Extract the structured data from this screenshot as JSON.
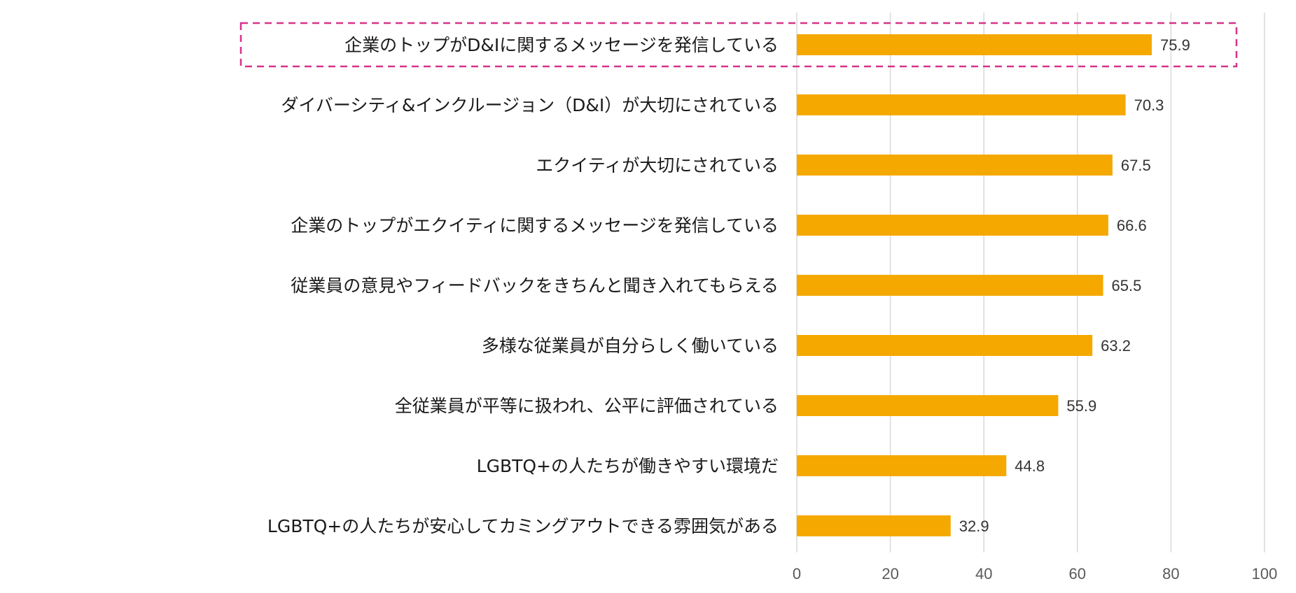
{
  "chart_data": {
    "type": "bar",
    "orientation": "horizontal",
    "title": "",
    "xlabel": "",
    "ylabel": "",
    "xlim": [
      0,
      100
    ],
    "ticks": [
      0,
      20,
      40,
      60,
      80,
      100
    ],
    "grid": true,
    "bar_color": "#F5A800",
    "highlight_color": "#D6338A",
    "highlight_index": 0,
    "categories": [
      "企業のトップがD&Iに関するメッセージを発信している",
      "ダイバーシティ&インクルージョン（D&I）が大切にされている",
      "エクイティが大切にされている",
      "企業のトップがエクイティに関するメッセージを発信している",
      "従業員の意見やフィードバックをきちんと聞き入れてもらえる",
      "多様な従業員が自分らしく働いている",
      "全従業員が平等に扱われ、公平に評価されている",
      "LGBTQ+の人たちが働きやすい環境だ",
      "LGBTQ+の人たちが安心してカミングアウトできる雰囲気がある"
    ],
    "values": [
      75.9,
      70.3,
      67.5,
      66.6,
      65.5,
      63.2,
      55.9,
      44.8,
      32.9
    ]
  }
}
